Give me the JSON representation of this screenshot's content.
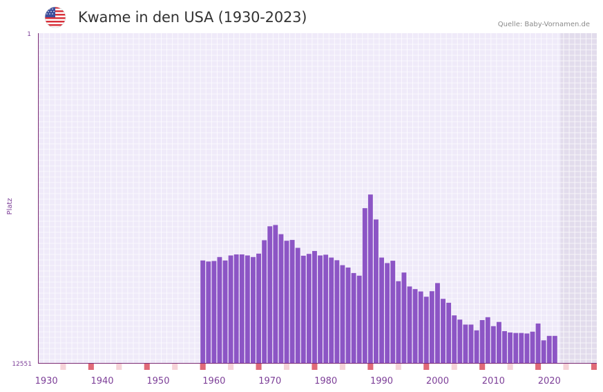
{
  "header": {
    "title": "Kwame in den USA (1930-2023)",
    "source": "Quelle: Baby-Vornamen.de",
    "flag_icon": "usa-flag-icon"
  },
  "colors": {
    "bar": "#8c55c5",
    "plot_bg": "#efeaf9",
    "grid": "#ffffff",
    "axis": "#7b2a73",
    "future_shade": "#e2dcec",
    "axis_text": "#7d3f98",
    "decade_marker": "#e06a78",
    "minor_marker": "#f6d3d8"
  },
  "chart_data": {
    "type": "bar",
    "title": "Kwame in den USA (1930-2023)",
    "ylabel": "Platz",
    "xlabel": "",
    "y_inverted": true,
    "y_tick_labels": [
      "1",
      "12551"
    ],
    "ylim": [
      1,
      12551
    ],
    "x_range": [
      1929,
      2029
    ],
    "x_ticks": [
      1930,
      1940,
      1950,
      1960,
      1970,
      1980,
      1990,
      2000,
      2010,
      2020
    ],
    "shaded_from_year": 2022.5,
    "series": [
      {
        "name": "Platz",
        "x": [
          1958,
          1959,
          1960,
          1961,
          1962,
          1963,
          1964,
          1965,
          1966,
          1967,
          1968,
          1969,
          1970,
          1971,
          1972,
          1973,
          1974,
          1975,
          1976,
          1977,
          1978,
          1979,
          1980,
          1981,
          1982,
          1983,
          1984,
          1985,
          1986,
          1987,
          1988,
          1989,
          1990,
          1991,
          1992,
          1993,
          1994,
          1995,
          1996,
          1997,
          1998,
          1999,
          2000,
          2001,
          2002,
          2003,
          2004,
          2005,
          2006,
          2007,
          2008,
          2009,
          2010,
          2011,
          2012,
          2013,
          2014,
          2015,
          2016,
          2017,
          2018,
          2019,
          2020,
          2021
        ],
        "values": [
          8650,
          8690,
          8670,
          8520,
          8650,
          8460,
          8420,
          8420,
          8460,
          8520,
          8390,
          7880,
          7350,
          7300,
          7650,
          7900,
          7870,
          8170,
          8470,
          8400,
          8290,
          8460,
          8430,
          8540,
          8640,
          8830,
          8920,
          9130,
          9230,
          6660,
          6140,
          7090,
          8540,
          8750,
          8660,
          9440,
          9110,
          9640,
          9740,
          9830,
          10030,
          9820,
          9510,
          10110,
          10260,
          10740,
          10900,
          11090,
          11090,
          11310,
          10920,
          10810,
          11150,
          10990,
          11340,
          11390,
          11410,
          11410,
          11430,
          11360,
          11050,
          11690,
          11520,
          11520
        ]
      }
    ]
  }
}
